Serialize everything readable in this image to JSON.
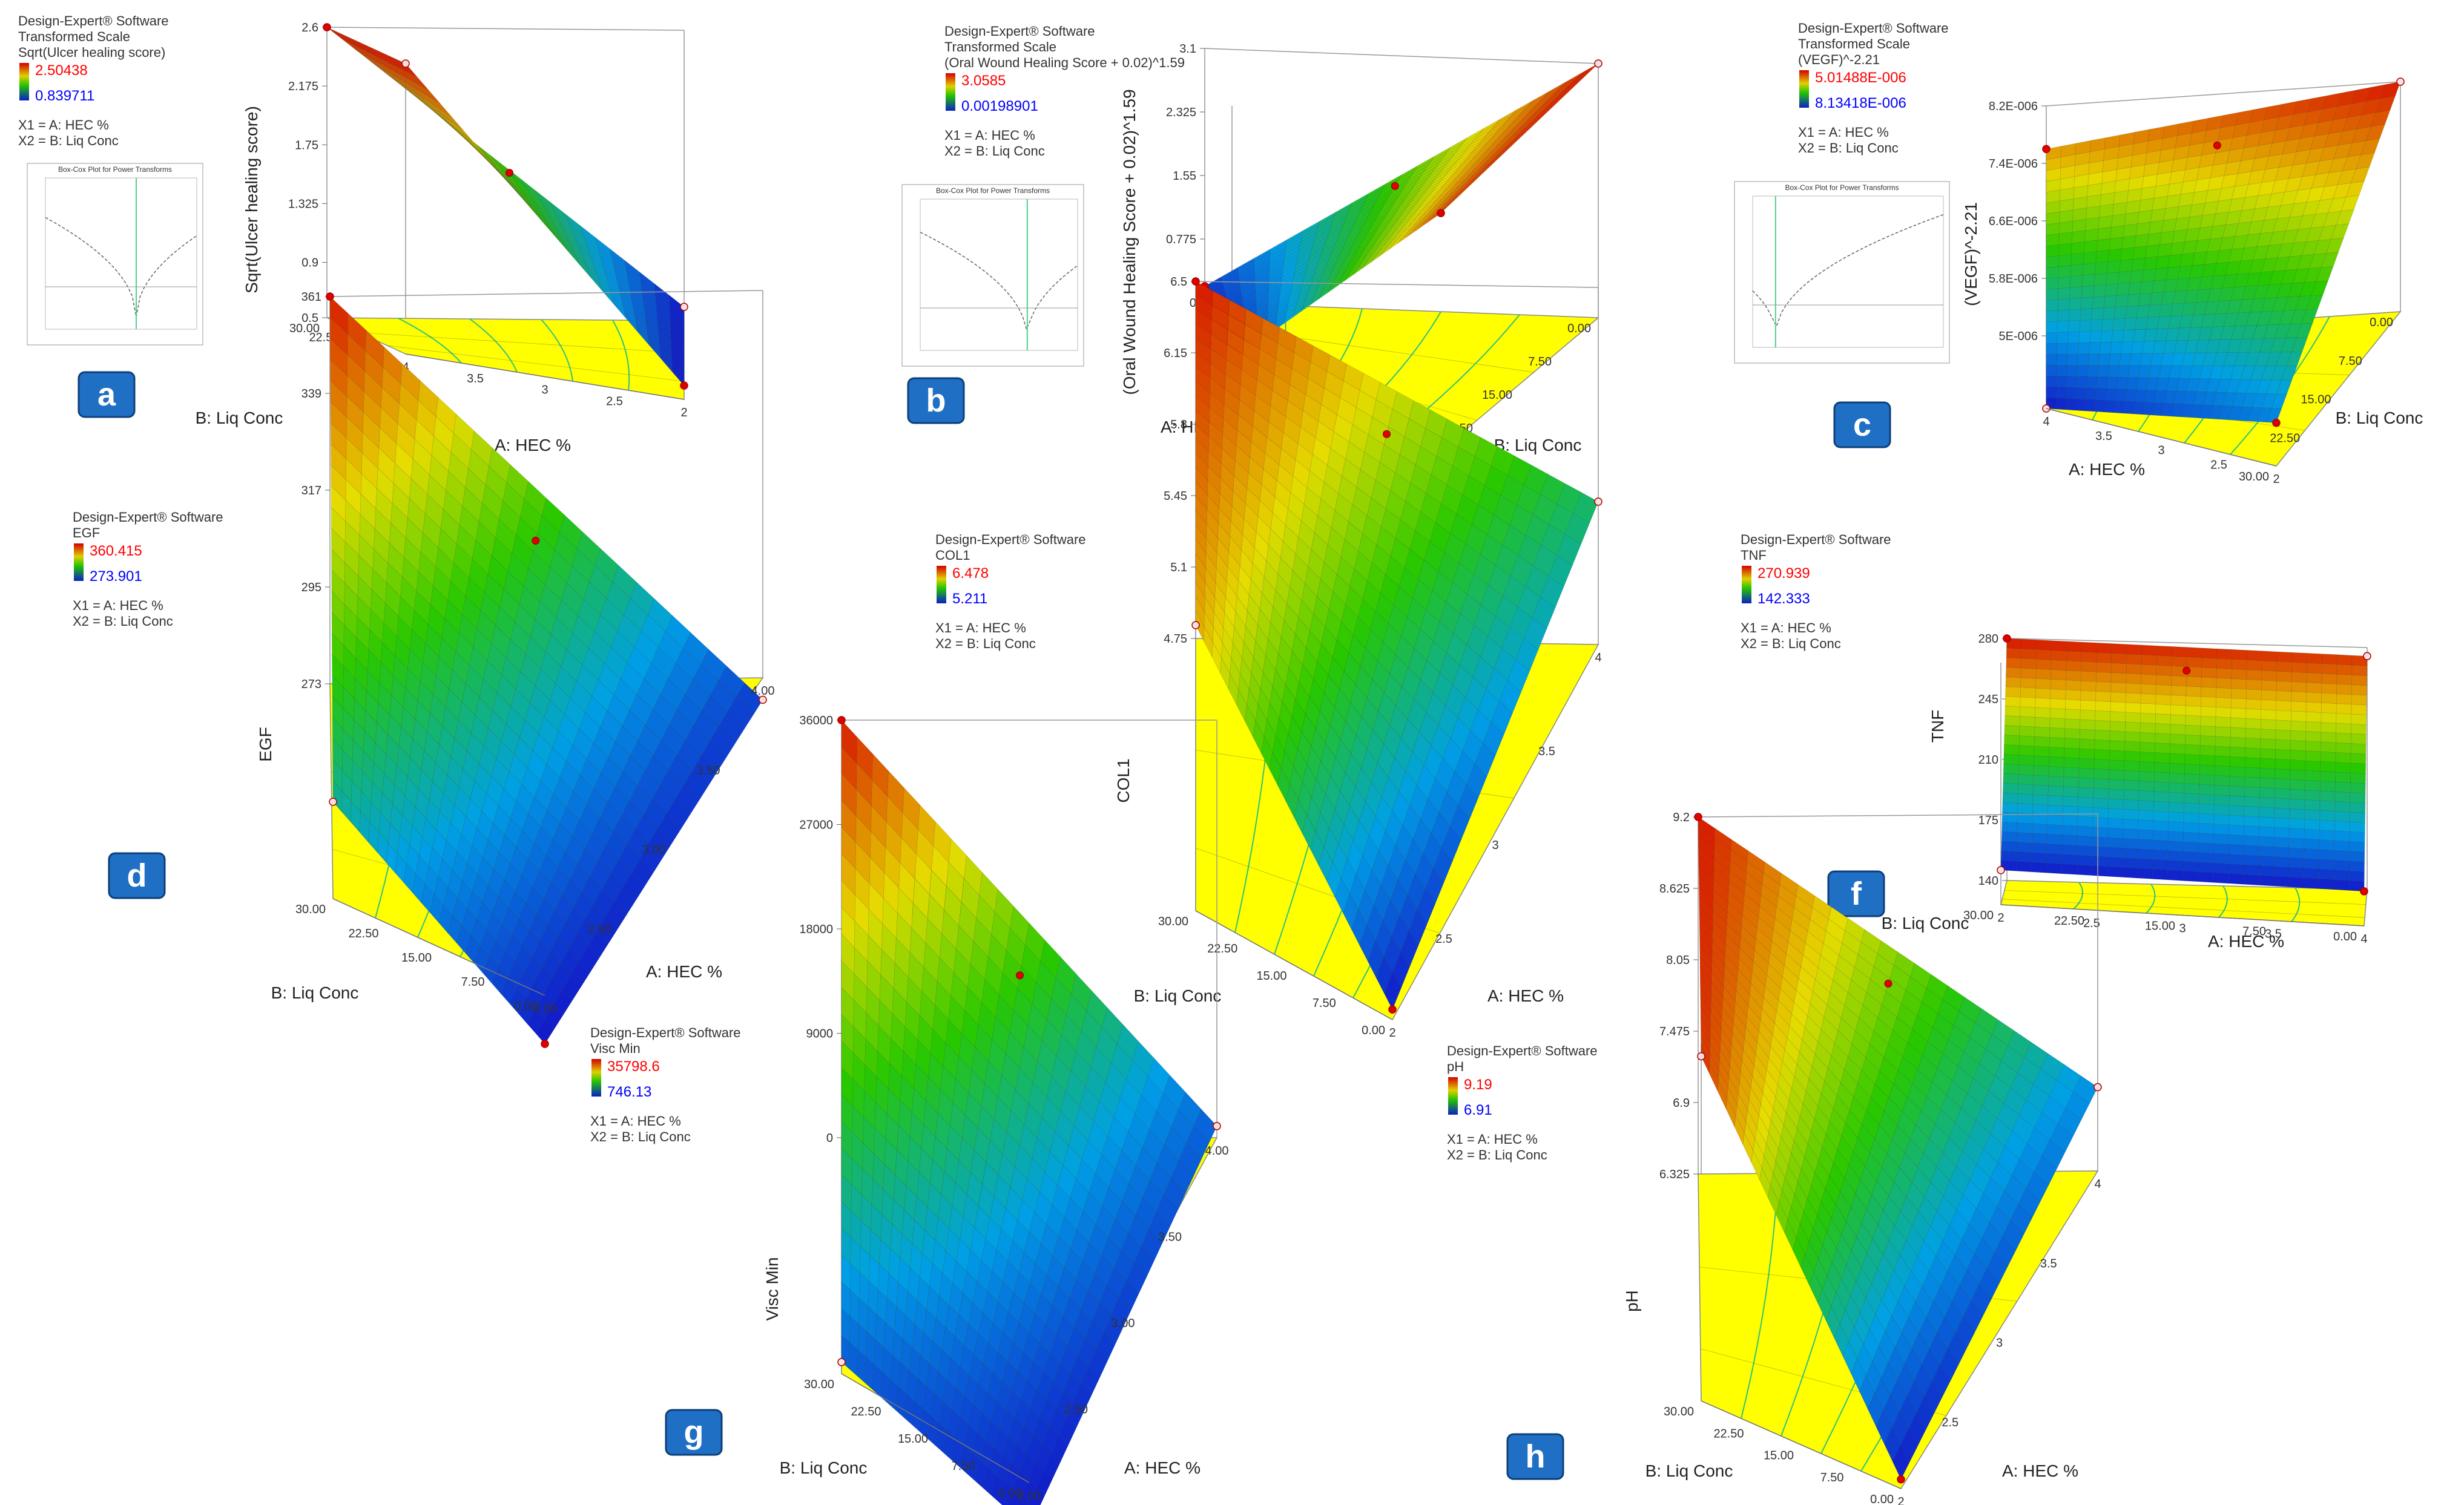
{
  "colors": {
    "surface_high": "#d40000",
    "surface_mid": "#22c400",
    "surface_low": "#0a1fc8",
    "floor": "#ffff00",
    "contour": "#2ec27e",
    "badge": "#1f6fc5",
    "legend_high_text": "#ff0000",
    "legend_low_text": "#0000ff",
    "boxcox_line": "#4fd08a"
  },
  "chart_data": [
    {
      "id": "a",
      "badge": "a",
      "type": "surface3d",
      "software": "Design-Expert® Software",
      "scale_note": "Transformed Scale",
      "response": "Sqrt(Ulcer healing score)",
      "legend_high": "2.50438",
      "legend_low": "0.839711",
      "factors": [
        "X1 = A: HEC %",
        "X2 = B: Liq Conc"
      ],
      "boxcox_title": "Box-Cox Plot for Power Transforms",
      "zlabel": "Sqrt(Ulcer healing score)",
      "z_ticks": [
        "0.5",
        "0.9",
        "1.325",
        "1.75",
        "2.175",
        "2.6"
      ],
      "xlabel": "A: HEC %",
      "x_ticks": [
        "4",
        "3.5",
        "3",
        "2.5",
        "2"
      ],
      "ylabel": "B: Liq Conc",
      "y_ticks": [
        "30.00",
        "22.50",
        "15.00",
        "7.50",
        "0.00"
      ],
      "corner_values": {
        "front_left": 2.6,
        "back_left": 2.6,
        "back_right": 0.6,
        "front_right": 0.6
      }
    },
    {
      "id": "b",
      "badge": "b",
      "type": "surface3d",
      "software": "Design-Expert® Software",
      "scale_note": "Transformed Scale",
      "response": "(Oral Wound Healing Score + 0.02)^1.59",
      "legend_high": "3.0585",
      "legend_low": "0.00198901",
      "factors": [
        "X1 = A: HEC %",
        "X2 = B: Liq Conc"
      ],
      "boxcox_title": "Box-Cox Plot for Power Transforms",
      "zlabel": "(Oral Wound Healing Score + 0.02)^1.59",
      "z_ticks": [
        "0",
        "0.775",
        "1.55",
        "2.325",
        "3.1"
      ],
      "xlabel": "A: HEC %",
      "x_ticks": [
        "4",
        "3.5",
        "3",
        "2.5",
        "2"
      ],
      "ylabel": "B: Liq Conc",
      "y_ticks": [
        "30.00",
        "22.50",
        "15.00",
        "7.50",
        "0.00"
      ],
      "corner_values": {
        "front_left": 0,
        "back_left": 0.2,
        "back_right": 3.1,
        "front_right": 2.9
      }
    },
    {
      "id": "c",
      "badge": "c",
      "type": "surface3d",
      "software": "Design-Expert® Software",
      "scale_note": "Transformed Scale",
      "response": "(VEGF)^-2.21",
      "legend_high": "5.01488E-006",
      "legend_low": "8.13418E-006",
      "factors": [
        "X1 = A: HEC %",
        "X2 = B: Liq Conc"
      ],
      "boxcox_title": "Box-Cox Plot for Power Transforms",
      "zlabel": "(VEGF)^-2.21",
      "z_ticks": [
        "5E-006",
        "5.8E-006",
        "6.6E-006",
        "7.4E-006",
        "8.2E-006"
      ],
      "xlabel": "A: HEC %",
      "x_ticks": [
        "4",
        "3.5",
        "3",
        "2.5",
        "2"
      ],
      "ylabel": "B: Liq Conc",
      "y_ticks": [
        "30.00",
        "22.50",
        "15.00",
        "7.50",
        "0.00"
      ],
      "corner_values": {
        "front_left": 5e-06,
        "back_left": 7.6e-06,
        "back_right": 8.2e-06,
        "front_right": 5.6e-06
      }
    },
    {
      "id": "d",
      "badge": "d",
      "type": "surface3d",
      "software": "Design-Expert® Software",
      "response": "EGF",
      "legend_high": "360.415",
      "legend_low": "273.901",
      "factors": [
        "X1 = A: HEC %",
        "X2 = B: Liq Conc"
      ],
      "zlabel": "EGF",
      "z_ticks": [
        "273",
        "295",
        "317",
        "339",
        "361"
      ],
      "xlabel": "A: HEC %",
      "x_ticks": [
        "2.00",
        "2.50",
        "3.00",
        "3.50",
        "4.00"
      ],
      "ylabel": "B: Liq Conc",
      "y_ticks": [
        "30.00",
        "22.50",
        "15.00",
        "7.50",
        "0.00"
      ],
      "corner_values": {
        "front_left": 295,
        "back_left": 361,
        "back_right": 268,
        "front_right": 262
      }
    },
    {
      "id": "e",
      "badge": "e",
      "type": "surface3d",
      "software": "Design-Expert® Software",
      "response": "COL1",
      "legend_high": "6.478",
      "legend_low": "5.211",
      "factors": [
        "X1 = A: HEC %",
        "X2 = B: Liq Conc"
      ],
      "zlabel": "COL1",
      "z_ticks": [
        "4.75",
        "5.1",
        "5.45",
        "5.8",
        "6.15",
        "6.5"
      ],
      "xlabel": "A: HEC %",
      "x_ticks": [
        "2",
        "2.5",
        "3",
        "3.5",
        "4"
      ],
      "ylabel": "B: Liq Conc",
      "y_ticks": [
        "30.00",
        "22.50",
        "15.00",
        "7.50",
        "0.00"
      ],
      "corner_values": {
        "front_left": 6.15,
        "back_left": 6.5,
        "back_right": 5.45,
        "front_right": 4.8
      }
    },
    {
      "id": "f",
      "badge": "f",
      "type": "surface3d",
      "software": "Design-Expert® Software",
      "response": "TNF",
      "legend_high": "270.939",
      "legend_low": "142.333",
      "factors": [
        "X1 = A: HEC %",
        "X2 = B: Liq Conc"
      ],
      "zlabel": "TNF",
      "z_ticks": [
        "140",
        "175",
        "210",
        "245",
        "280"
      ],
      "xlabel": "A: HEC %",
      "x_ticks": [
        "2",
        "2.5",
        "3",
        "3.5",
        "4"
      ],
      "ylabel": "B: Liq Conc",
      "y_ticks": [
        "30.00",
        "22.50",
        "15.00",
        "7.50",
        "0.00"
      ],
      "corner_values": {
        "front_left": 160,
        "back_left": 280,
        "back_right": 275,
        "front_right": 160
      }
    },
    {
      "id": "g",
      "badge": "g",
      "type": "surface3d",
      "software": "Design-Expert® Software",
      "response": "Visc Min",
      "legend_high": "35798.6",
      "legend_low": "746.13",
      "factors": [
        "X1 = A: HEC %",
        "X2 = B: Liq Conc"
      ],
      "zlabel": "Visc Min",
      "z_ticks": [
        "0",
        "9000",
        "18000",
        "27000",
        "36000"
      ],
      "xlabel": "A: HEC %",
      "x_ticks": [
        "2.00",
        "2.50",
        "3.00",
        "3.50",
        "4.00"
      ],
      "ylabel": "B: Liq Conc",
      "y_ticks": [
        "30.00",
        "22.50",
        "15.00",
        "7.50",
        "0.00"
      ],
      "corner_values": {
        "front_left": 1000,
        "back_left": 36000,
        "back_right": 1000,
        "front_right": -4000
      }
    },
    {
      "id": "h",
      "badge": "h",
      "type": "surface3d",
      "software": "Design-Expert® Software",
      "response": "pH",
      "legend_high": "9.19",
      "legend_low": "6.91",
      "factors": [
        "X1 = A: HEC %",
        "X2 = B: Liq Conc"
      ],
      "zlabel": "pH",
      "z_ticks": [
        "6.325",
        "6.9",
        "7.475",
        "8.05",
        "8.625",
        "9.2"
      ],
      "xlabel": "A: HEC %",
      "x_ticks": [
        "2",
        "2.5",
        "3",
        "3.5",
        "4"
      ],
      "ylabel": "B: Liq Conc",
      "y_ticks": [
        "30.00",
        "22.50",
        "15.00",
        "7.50",
        "0.00"
      ],
      "corner_values": {
        "front_left": 9.1,
        "back_left": 9.2,
        "back_right": 7.0,
        "front_right": 6.4
      }
    }
  ]
}
